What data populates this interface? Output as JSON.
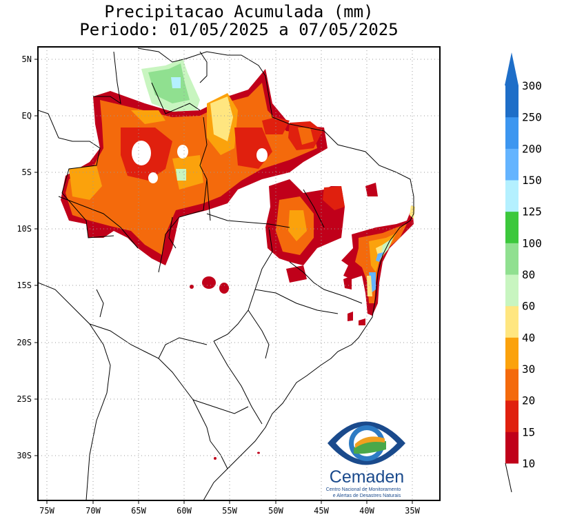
{
  "title_line1": "Precipitacao Acumulada (mm)",
  "title_line2": "Periodo: 01/05/2025 a 07/05/2025",
  "lat_ticks": [
    "5N",
    "EQ",
    "5S",
    "10S",
    "15S",
    "20S",
    "25S",
    "30S"
  ],
  "lon_ticks": [
    "75W",
    "70W",
    "65W",
    "60W",
    "55W",
    "50W",
    "45W",
    "40W",
    "35W"
  ],
  "colorbar": {
    "labels": [
      "10",
      "15",
      "20",
      "30",
      "40",
      "60",
      "80",
      "100",
      "125",
      "150",
      "200",
      "250",
      "300"
    ],
    "colors": [
      "#c0001a",
      "#e0200e",
      "#f46a0c",
      "#fba20c",
      "#ffe680",
      "#c8f5c0",
      "#90e090",
      "#3cc83c",
      "#b4f0ff",
      "#64b4ff",
      "#3c96f0",
      "#1e6ec8"
    ],
    "top_arrow_color": "#1e6ec8"
  },
  "logo": {
    "name": "Cemaden",
    "subtitle_line1": "Centro Nacional de Monitoramento",
    "subtitle_line2": "e Alertas de Desastres Naturais"
  }
}
